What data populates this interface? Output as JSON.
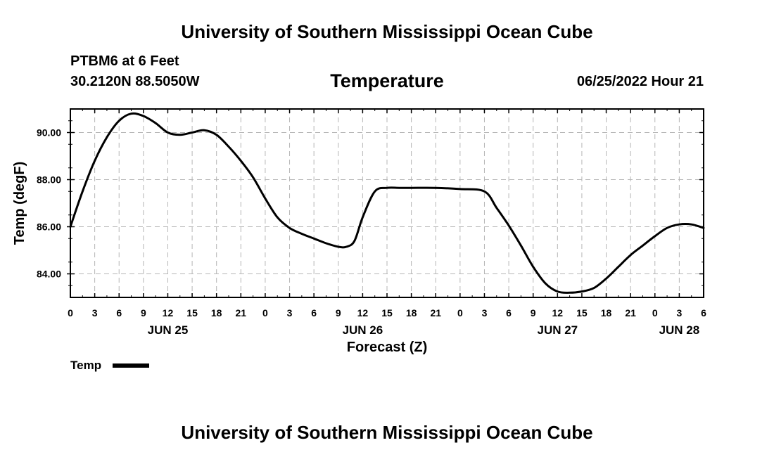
{
  "header": {
    "title": "University of Southern Mississippi Ocean Cube",
    "station": "PTBM6 at 6 Feet",
    "coords": "30.2120N  88.5050W",
    "datetime": "06/25/2022 Hour 21"
  },
  "footer": {
    "title": "University of Southern Mississippi Ocean Cube"
  },
  "chart_data": {
    "type": "line",
    "title": "Temperature",
    "xlabel": "Forecast (Z)",
    "ylabel": "Temp (degF)",
    "xlim": [
      0,
      78
    ],
    "ylim": [
      83,
      91
    ],
    "grid": true,
    "legend_position": "bottom-left",
    "y_ticks": [
      84,
      86,
      88,
      90
    ],
    "y_tick_labels": [
      "84.00",
      "86.00",
      "88.00",
      "90.00"
    ],
    "x_ticks": [
      0,
      3,
      6,
      9,
      12,
      15,
      18,
      21,
      24,
      27,
      30,
      33,
      36,
      39,
      42,
      45,
      48,
      51,
      54,
      57,
      60,
      63,
      66,
      69,
      72,
      75,
      78
    ],
    "x_tick_labels": [
      "0",
      "3",
      "6",
      "9",
      "12",
      "15",
      "18",
      "21",
      "0",
      "3",
      "6",
      "9",
      "12",
      "15",
      "18",
      "21",
      "0",
      "3",
      "6",
      "9",
      "12",
      "15",
      "18",
      "21",
      "0",
      "3",
      "6"
    ],
    "date_labels": [
      {
        "x": 12,
        "label": "JUN 25"
      },
      {
        "x": 36,
        "label": "JUN 26"
      },
      {
        "x": 60,
        "label": "JUN 27"
      },
      {
        "x": 75,
        "label": "JUN 28"
      }
    ],
    "series": [
      {
        "name": "Temp",
        "color": "#000000",
        "x": [
          0,
          1.5,
          3,
          4.5,
          6,
          7.5,
          9,
          10.5,
          12,
          13.5,
          15,
          16.5,
          18,
          19.5,
          21,
          22.5,
          24,
          25.5,
          27,
          28.5,
          30,
          31.5,
          33,
          34,
          35,
          36,
          37.5,
          39,
          40.5,
          42,
          45,
          48,
          51,
          52.5,
          54,
          55.5,
          57,
          58.5,
          60,
          61.5,
          63,
          64.5,
          66,
          67.5,
          69,
          70.5,
          72,
          73.5,
          75,
          76.5,
          78
        ],
        "values": [
          86.0,
          87.5,
          88.8,
          89.8,
          90.5,
          90.8,
          90.7,
          90.4,
          90.0,
          89.9,
          90.0,
          90.1,
          89.9,
          89.4,
          88.8,
          88.1,
          87.2,
          86.4,
          85.95,
          85.7,
          85.5,
          85.3,
          85.15,
          85.15,
          85.4,
          86.4,
          87.5,
          87.65,
          87.65,
          87.65,
          87.65,
          87.6,
          87.5,
          86.8,
          86.05,
          85.2,
          84.3,
          83.6,
          83.25,
          83.2,
          83.25,
          83.4,
          83.8,
          84.3,
          84.8,
          85.2,
          85.6,
          85.95,
          86.1,
          86.1,
          85.95
        ]
      }
    ]
  }
}
